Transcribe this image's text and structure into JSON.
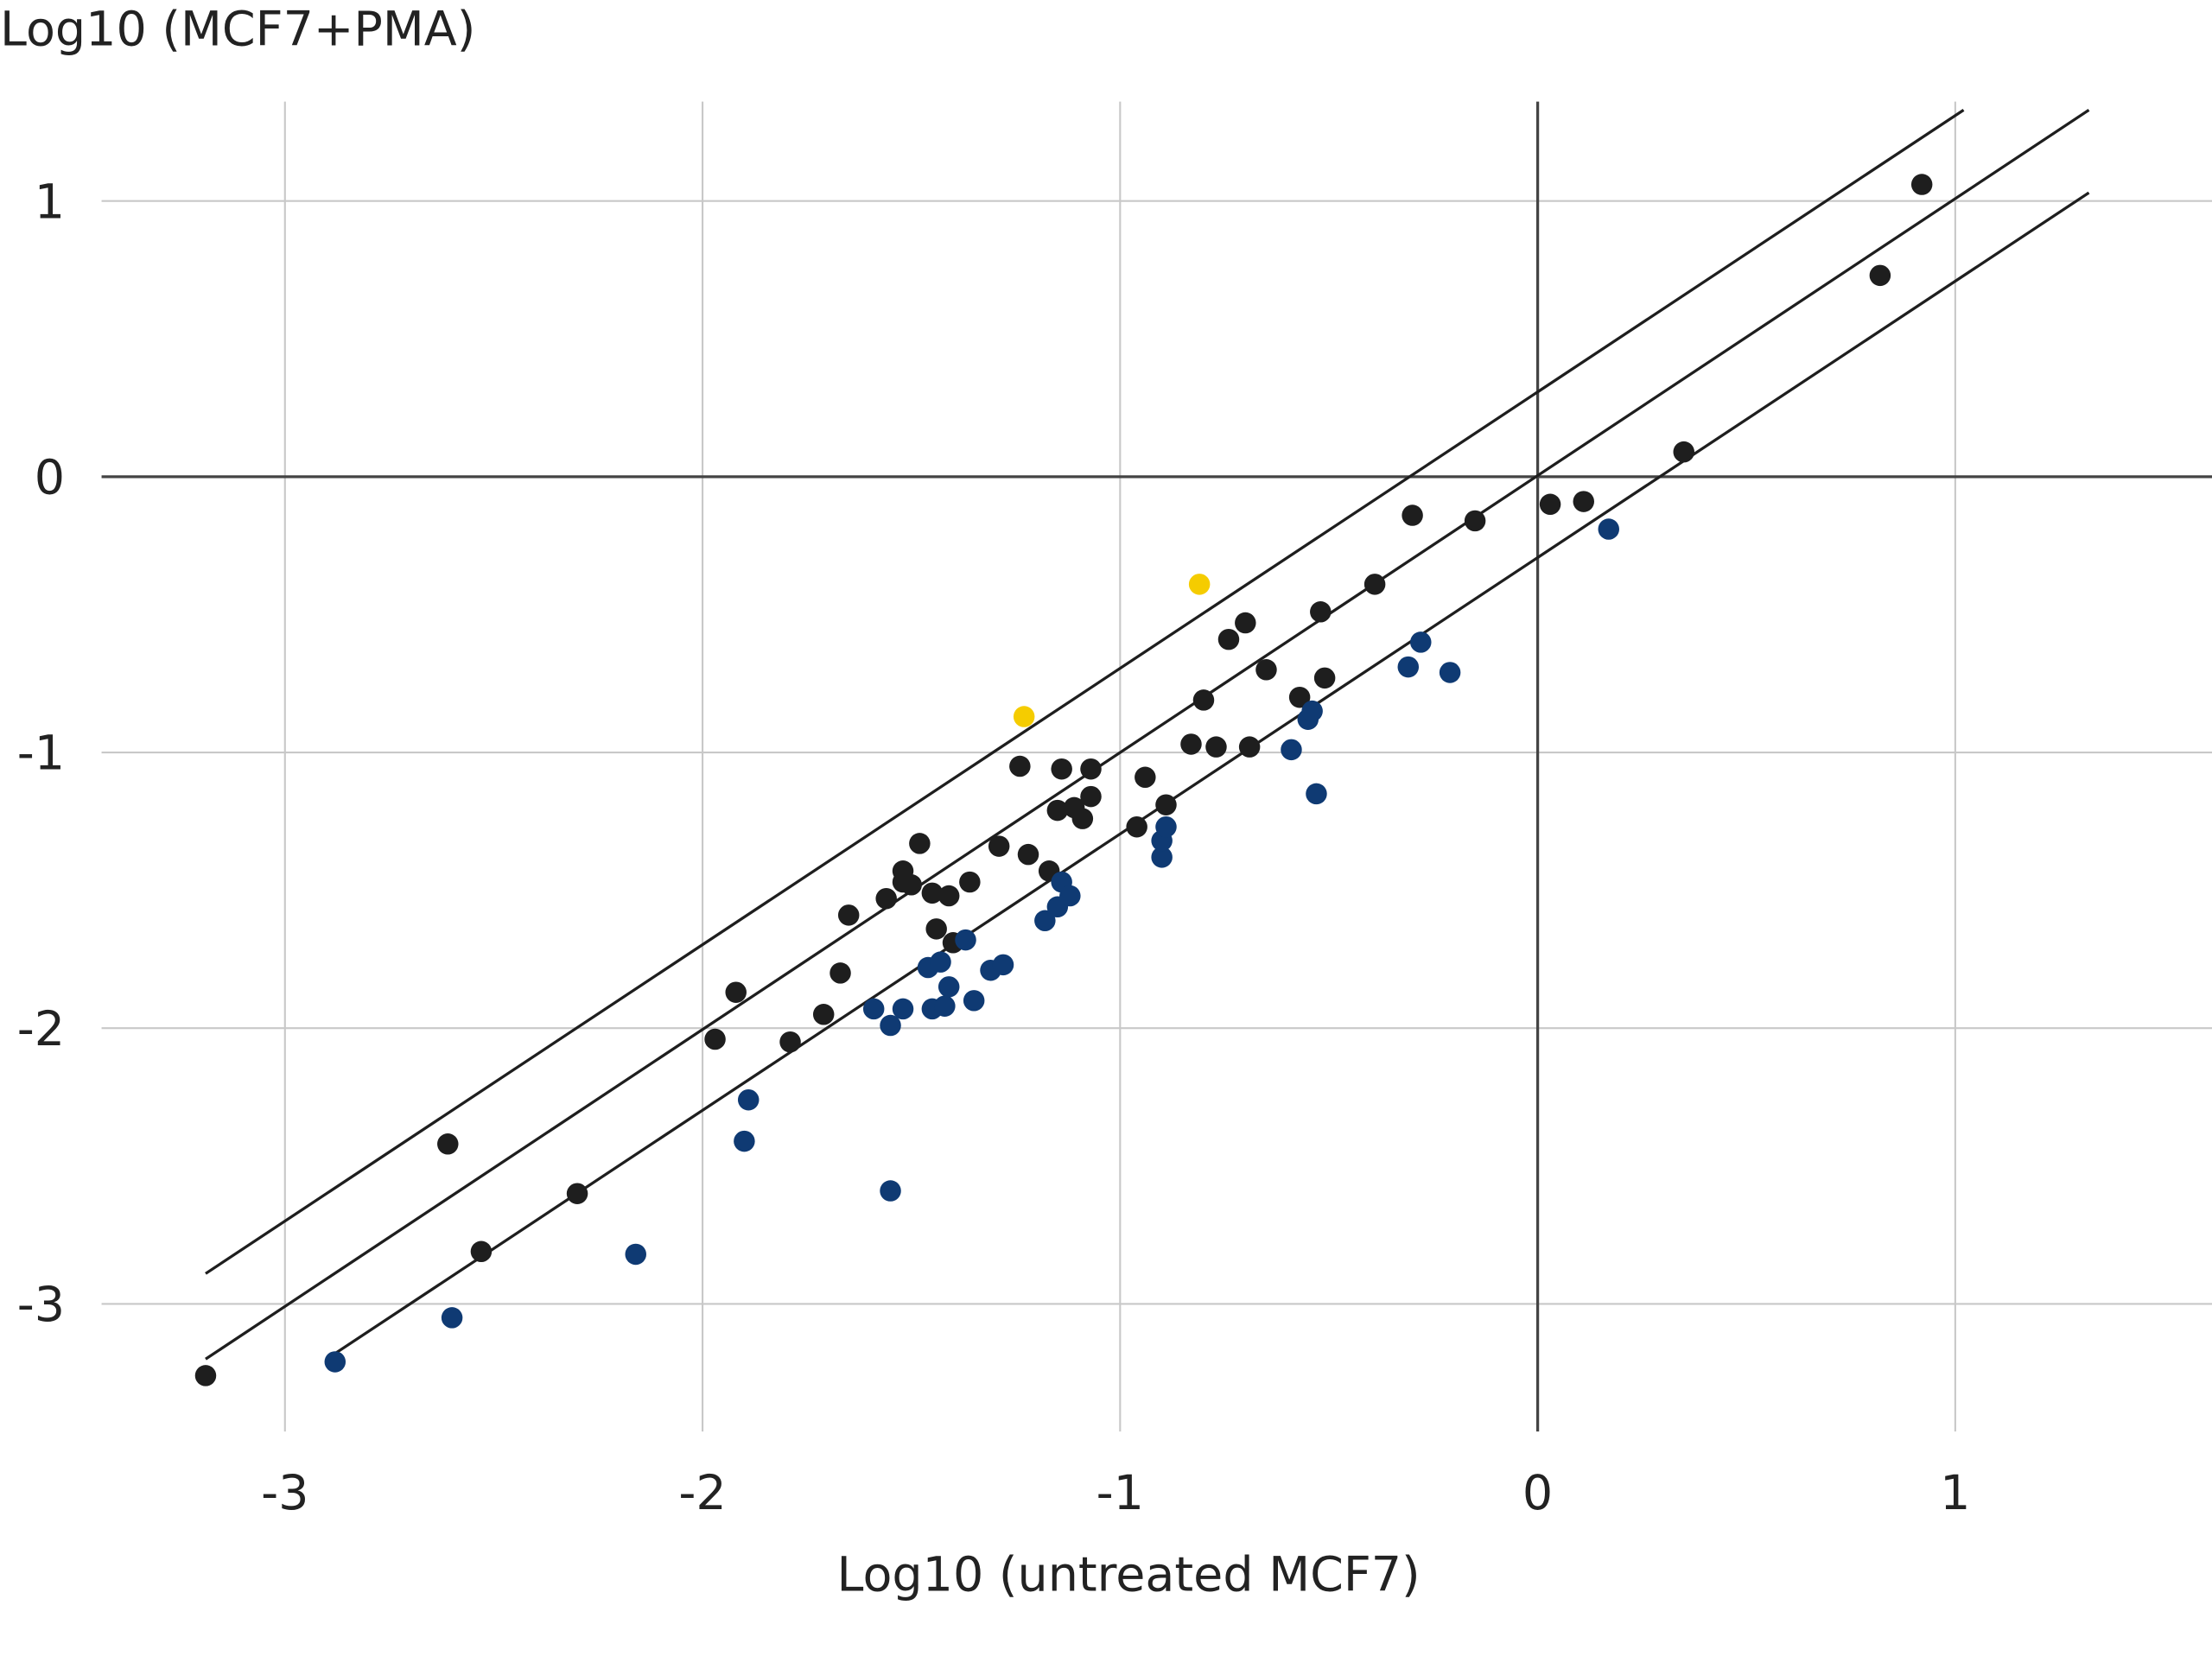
{
  "chart_data": {
    "type": "scatter",
    "title": "",
    "ylabel": "Log10 (MCF7+PMA)",
    "xlabel": "Log10 (untreated MCF7)",
    "xlim": [
      -3.44,
      1.61
    ],
    "ylim": [
      -3.46,
      1.36
    ],
    "xticks": [
      -3,
      -2,
      -1,
      0,
      1
    ],
    "yticks": [
      1,
      0,
      -1,
      -2,
      -3
    ],
    "xtick_labels": [
      "-3",
      "-2",
      "-1",
      "0",
      "1"
    ],
    "ytick_labels": [
      "1",
      "0",
      "-1",
      "-2",
      "-3"
    ],
    "grid": true,
    "colors": {
      "black": "#1e1e1e",
      "blue": "#0f3a73",
      "yellow": "#f5cc00",
      "grid": "#c8c8c8",
      "axis": "#444444",
      "line": "#1e1e1e"
    },
    "reference_lines": [
      {
        "name": "upper",
        "x": [
          -3.19,
          1.02
        ],
        "y": [
          -2.89,
          1.33
        ]
      },
      {
        "name": "identity",
        "x": [
          -3.19,
          1.32
        ],
        "y": [
          -3.2,
          1.33
        ]
      },
      {
        "name": "lower",
        "x": [
          -2.9,
          1.32
        ],
        "y": [
          -3.2,
          1.03
        ]
      }
    ],
    "series": [
      {
        "name": "black",
        "color": "#1e1e1e",
        "points": [
          [
            -3.19,
            -3.26
          ],
          [
            -2.61,
            -2.42
          ],
          [
            -2.53,
            -2.81
          ],
          [
            -2.3,
            -2.6
          ],
          [
            -1.97,
            -2.04
          ],
          [
            -1.92,
            -1.87
          ],
          [
            -1.79,
            -2.05
          ],
          [
            -1.71,
            -1.95
          ],
          [
            -1.67,
            -1.8
          ],
          [
            -1.65,
            -1.59
          ],
          [
            -1.56,
            -1.53
          ],
          [
            -1.52,
            -1.43
          ],
          [
            -1.52,
            -1.47
          ],
          [
            -1.5,
            -1.48
          ],
          [
            -1.48,
            -1.33
          ],
          [
            -1.45,
            -1.51
          ],
          [
            -1.44,
            -1.64
          ],
          [
            -1.41,
            -1.52
          ],
          [
            -1.4,
            -1.69
          ],
          [
            -1.36,
            -1.47
          ],
          [
            -1.29,
            -1.34
          ],
          [
            -1.24,
            -1.05
          ],
          [
            -1.22,
            -1.37
          ],
          [
            -1.17,
            -1.43
          ],
          [
            -1.15,
            -1.21
          ],
          [
            -1.14,
            -1.06
          ],
          [
            -1.11,
            -1.2
          ],
          [
            -1.09,
            -1.24
          ],
          [
            -1.07,
            -1.16
          ],
          [
            -1.07,
            -1.06
          ],
          [
            -0.96,
            -1.27
          ],
          [
            -0.94,
            -1.09
          ],
          [
            -0.89,
            -1.19
          ],
          [
            -0.83,
            -0.97
          ],
          [
            -0.8,
            -0.81
          ],
          [
            -0.77,
            -0.98
          ],
          [
            -0.74,
            -0.59
          ],
          [
            -0.7,
            -0.53
          ],
          [
            -0.69,
            -0.98
          ],
          [
            -0.65,
            -0.7
          ],
          [
            -0.57,
            -0.8
          ],
          [
            -0.52,
            -0.49
          ],
          [
            -0.51,
            -0.73
          ],
          [
            -0.39,
            -0.39
          ],
          [
            -0.3,
            -0.14
          ],
          [
            -0.15,
            -0.16
          ],
          [
            0.03,
            -0.1
          ],
          [
            0.11,
            -0.09
          ],
          [
            0.35,
            0.09
          ],
          [
            0.82,
            0.73
          ],
          [
            0.92,
            1.06
          ]
        ]
      },
      {
        "name": "blue",
        "color": "#0f3a73",
        "points": [
          [
            -2.88,
            -3.21
          ],
          [
            -2.6,
            -3.05
          ],
          [
            -2.16,
            -2.82
          ],
          [
            -1.9,
            -2.41
          ],
          [
            -1.89,
            -2.26
          ],
          [
            -1.59,
            -1.93
          ],
          [
            -1.55,
            -1.99
          ],
          [
            -1.55,
            -2.59
          ],
          [
            -1.52,
            -1.93
          ],
          [
            -1.46,
            -1.78
          ],
          [
            -1.45,
            -1.93
          ],
          [
            -1.43,
            -1.76
          ],
          [
            -1.42,
            -1.92
          ],
          [
            -1.41,
            -1.85
          ],
          [
            -1.37,
            -1.68
          ],
          [
            -1.35,
            -1.9
          ],
          [
            -1.31,
            -1.79
          ],
          [
            -1.28,
            -1.77
          ],
          [
            -1.18,
            -1.61
          ],
          [
            -1.15,
            -1.56
          ],
          [
            -1.14,
            -1.47
          ],
          [
            -1.12,
            -1.52
          ],
          [
            -0.9,
            -1.38
          ],
          [
            -0.9,
            -1.32
          ],
          [
            -0.89,
            -1.27
          ],
          [
            -0.59,
            -0.99
          ],
          [
            -0.55,
            -0.88
          ],
          [
            -0.54,
            -0.85
          ],
          [
            -0.53,
            -1.15
          ],
          [
            -0.31,
            -0.69
          ],
          [
            -0.28,
            -0.6
          ],
          [
            -0.21,
            -0.71
          ],
          [
            0.17,
            -0.19
          ]
        ]
      },
      {
        "name": "yellow",
        "color": "#f5cc00",
        "points": [
          [
            -1.23,
            -0.87
          ],
          [
            -0.81,
            -0.39
          ]
        ]
      }
    ]
  }
}
